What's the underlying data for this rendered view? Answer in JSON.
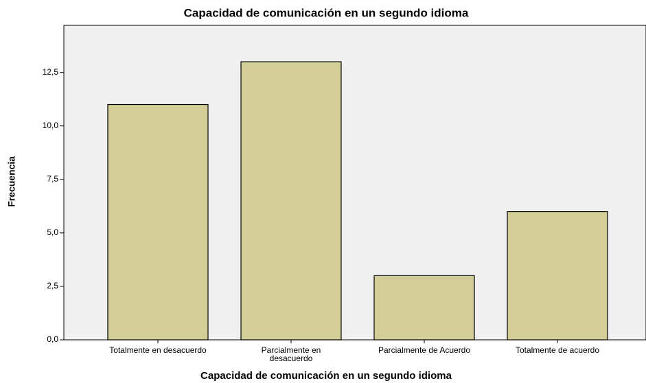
{
  "chart_data": {
    "type": "bar",
    "title": "Capacidad de comunicación en un segundo idioma",
    "x_label": "Capacidad de comunicación en un segundo idioma",
    "y_label": "Frecuencia",
    "categories": [
      "Totalmente en desacuerdo",
      "Parcialmente en desacuerdo",
      "Parcialmente de Acuerdo",
      "Totalmente de acuerdo"
    ],
    "values": [
      11,
      13,
      3,
      6
    ],
    "color": "#d3ce97",
    "ylim": [
      0,
      14.7
    ],
    "yticks": [
      {
        "value": 0,
        "label": "0,0"
      },
      {
        "value": 2.5,
        "label": "2,5"
      },
      {
        "value": 5,
        "label": "5,0"
      },
      {
        "value": 7.5,
        "label": "7,5"
      },
      {
        "value": 10,
        "label": "10,0"
      },
      {
        "value": 12.5,
        "label": "12,5"
      }
    ]
  }
}
